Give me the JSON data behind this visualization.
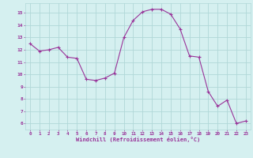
{
  "x": [
    0,
    1,
    2,
    3,
    4,
    5,
    6,
    7,
    8,
    9,
    10,
    11,
    12,
    13,
    14,
    15,
    16,
    17,
    18,
    19,
    20,
    21,
    22,
    23
  ],
  "y": [
    12.5,
    11.9,
    12.0,
    12.2,
    11.4,
    11.3,
    9.6,
    9.5,
    9.7,
    10.1,
    13.0,
    14.4,
    15.1,
    15.3,
    15.3,
    14.9,
    13.7,
    11.5,
    11.4,
    8.6,
    7.4,
    7.9,
    6.0,
    6.2
  ],
  "line_color": "#993399",
  "marker": "+",
  "marker_size": 3.5,
  "marker_linewidth": 0.8,
  "line_width": 0.8,
  "bg_color": "#d5f0f0",
  "grid_color": "#b0d8d8",
  "xlabel": "Windchill (Refroidissement éolien,°C)",
  "xlabel_color": "#993399",
  "tick_color": "#993399",
  "ylim": [
    5.5,
    15.8
  ],
  "xlim": [
    -0.5,
    23.5
  ],
  "yticks": [
    6,
    7,
    8,
    9,
    10,
    11,
    12,
    13,
    14,
    15
  ],
  "xticks": [
    0,
    1,
    2,
    3,
    4,
    5,
    6,
    7,
    8,
    9,
    10,
    11,
    12,
    13,
    14,
    15,
    16,
    17,
    18,
    19,
    20,
    21,
    22,
    23
  ]
}
